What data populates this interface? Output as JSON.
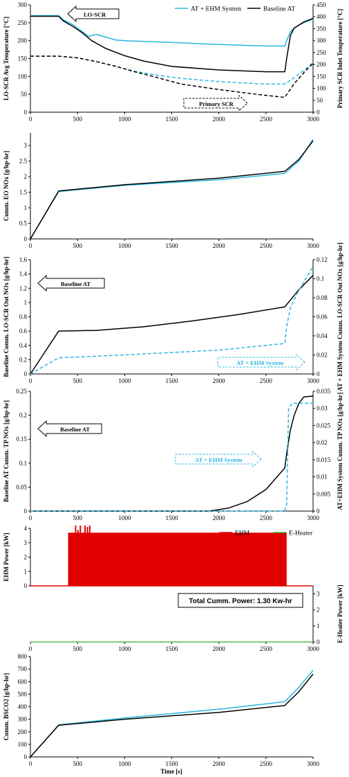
{
  "colors": {
    "baseline": "#000000",
    "ehm_system": "#29B6E0",
    "ehm_power": "#E00000",
    "e_heater": "#33AA33"
  },
  "x_axis": {
    "label": "Time [s]",
    "ticks": [
      0,
      500,
      1000,
      1500,
      2000,
      2500,
      3000
    ],
    "range": [
      0,
      3000
    ]
  },
  "chart_data": [
    {
      "type": "line",
      "ylabel_left": "LO-SCR Avg Temperature [°C]",
      "ylabel_right": "Primary SCR Inlet Temperature [°C]",
      "yticks_left": [
        0,
        50,
        100,
        150,
        200,
        250,
        300
      ],
      "yticks_right": [
        0,
        50,
        100,
        150,
        200,
        250,
        300,
        350,
        400,
        450
      ],
      "ylim_left": [
        0,
        300
      ],
      "ylim_right": [
        0,
        450
      ],
      "legend": [
        "AT + EHM System",
        "Baseline AT"
      ],
      "annotations": [
        "LO-SCR",
        "Primary SCR"
      ],
      "series": [
        {
          "name": "AT + EHM System",
          "axis": "left",
          "style": "solid",
          "color": "ehm_system",
          "x": [
            0,
            300,
            350,
            450,
            550,
            620,
            700,
            800,
            900,
            1000,
            1500,
            2000,
            2500,
            2700,
            2720,
            2760,
            2800,
            2900,
            3000
          ],
          "y": [
            270,
            270,
            258,
            245,
            225,
            212,
            217,
            210,
            202,
            200,
            195,
            189,
            185,
            185,
            200,
            225,
            236,
            250,
            260
          ]
        },
        {
          "name": "Baseline AT",
          "axis": "left",
          "style": "solid",
          "color": "baseline",
          "x": [
            0,
            300,
            350,
            450,
            550,
            650,
            800,
            1000,
            1200,
            1500,
            2000,
            2500,
            2700,
            2720,
            2760,
            2800,
            2900,
            3000
          ],
          "y": [
            268,
            268,
            255,
            240,
            222,
            200,
            178,
            158,
            143,
            128,
            118,
            113,
            113,
            150,
            215,
            235,
            252,
            262
          ]
        },
        {
          "name": "AT + EHM System",
          "axis": "right",
          "style": "dashed",
          "color": "ehm_system",
          "x": [
            0,
            300,
            500,
            700,
            900,
            1100,
            1300,
            1600,
            2000,
            2500,
            2700,
            2800,
            2900,
            3000
          ],
          "y": [
            235,
            235,
            228,
            212,
            193,
            172,
            158,
            142,
            128,
            118,
            118,
            145,
            175,
            208
          ]
        },
        {
          "name": "Baseline AT",
          "axis": "right",
          "style": "dashed",
          "color": "baseline",
          "x": [
            0,
            300,
            500,
            700,
            900,
            1100,
            1300,
            1600,
            2000,
            2400,
            2700,
            2800,
            2900,
            3000
          ],
          "y": [
            235,
            235,
            228,
            212,
            193,
            170,
            150,
            118,
            95,
            75,
            62,
            120,
            165,
            205
          ]
        }
      ]
    },
    {
      "type": "line",
      "ylabel_left": "Cumm. EO NOx [g/hp-hr]",
      "yticks_left": [
        0,
        0.5,
        1,
        1.5,
        2,
        2.5,
        3
      ],
      "ylim_left": [
        0,
        3.4
      ],
      "series": [
        {
          "name": "AT + EHM System",
          "axis": "left",
          "style": "solid",
          "color": "ehm_system",
          "x": [
            0,
            300,
            1000,
            2000,
            2700,
            2850,
            3000
          ],
          "y": [
            0,
            1.52,
            1.72,
            1.9,
            2.1,
            2.5,
            3.2
          ]
        },
        {
          "name": "Baseline AT",
          "axis": "left",
          "style": "solid",
          "color": "baseline",
          "x": [
            0,
            300,
            1000,
            2000,
            2700,
            2850,
            3000
          ],
          "y": [
            0,
            1.54,
            1.74,
            1.95,
            2.17,
            2.55,
            3.15
          ]
        }
      ]
    },
    {
      "type": "line",
      "ylabel_left": "Baseline Cumm. LO-SCR Out NOx [g/hp-hr]",
      "ylabel_right": "AT + EHM System Cumm. LO-SCR Out NOx [g/hp-hr]",
      "yticks_left": [
        0,
        0.2,
        0.4,
        0.6,
        0.8,
        1,
        1.2,
        1.4,
        1.6
      ],
      "yticks_right": [
        0,
        0.02,
        0.04,
        0.06,
        0.08,
        0.1,
        0.12
      ],
      "ylim_left": [
        0,
        1.6
      ],
      "ylim_right": [
        0,
        0.12
      ],
      "annotations": [
        "Baseline AT",
        "AT + EHM System"
      ],
      "series": [
        {
          "name": "Baseline AT",
          "axis": "left",
          "style": "solid",
          "color": "baseline",
          "x": [
            0,
            300,
            700,
            1200,
            1700,
            2200,
            2700,
            2850,
            3000
          ],
          "y": [
            0,
            0.6,
            0.61,
            0.66,
            0.74,
            0.83,
            0.94,
            1.18,
            1.38
          ]
        },
        {
          "name": "AT + EHM System",
          "axis": "right",
          "style": "dashed",
          "color": "ehm_system",
          "x": [
            0,
            300,
            1000,
            2000,
            2700,
            2720,
            2760,
            2850,
            3000
          ],
          "y": [
            0,
            0.017,
            0.02,
            0.025,
            0.032,
            0.05,
            0.07,
            0.088,
            0.113
          ]
        }
      ]
    },
    {
      "type": "line",
      "ylabel_left": "Baseline AT Cumm. TP NOx [g/hp-hr]",
      "ylabel_right": "AT+EHM System Cumm. TP NOx [g/hp-hr]",
      "yticks_left": [
        0,
        0.05,
        0.1,
        0.15,
        0.2,
        0.25
      ],
      "yticks_right": [
        0,
        0.005,
        0.01,
        0.015,
        0.02,
        0.025,
        0.03,
        0.035
      ],
      "ylim_left": [
        0,
        0.25
      ],
      "ylim_right": [
        0,
        0.035
      ],
      "annotations": [
        "Baseline AT",
        "AT + EHM System"
      ],
      "series": [
        {
          "name": "Baseline AT",
          "axis": "left",
          "style": "solid",
          "color": "baseline",
          "x": [
            0,
            1900,
            2100,
            2300,
            2500,
            2700,
            2720,
            2760,
            2800,
            2850,
            2900,
            3000
          ],
          "y": [
            0,
            0,
            0.006,
            0.02,
            0.045,
            0.09,
            0.12,
            0.17,
            0.2,
            0.225,
            0.238,
            0.24
          ]
        },
        {
          "name": "AT + EHM System",
          "axis": "right",
          "style": "dashed",
          "color": "ehm_system",
          "x": [
            0,
            2700,
            2720,
            2740,
            2780,
            2850,
            3000
          ],
          "y": [
            0,
            0,
            0.002,
            0.03,
            0.0315,
            0.0315,
            0.0315
          ]
        }
      ]
    },
    {
      "type": "line",
      "ylabel_left": "EHM Power [kW]",
      "ylabel_right": "E-Heater Power [kW]",
      "yticks_left": [
        0,
        1,
        2,
        3,
        4
      ],
      "yticks_right": [
        0,
        1,
        2,
        3
      ],
      "ylim_left": [
        0,
        4
      ],
      "ylim_right": [
        0,
        3.5
      ],
      "legend": [
        "EHM",
        "E-Heater"
      ],
      "annotations": [
        "Total Cumm. Power: 1.30 Kw-hr"
      ],
      "ehm_band": {
        "start": 400,
        "end": 2720,
        "level": 3.7,
        "spikes": [
          [
            410,
            2.5
          ],
          [
            430,
            3.6
          ],
          [
            455,
            3.4
          ],
          [
            480,
            4.2
          ],
          [
            505,
            3.9
          ],
          [
            530,
            4.2
          ],
          [
            555,
            3.6
          ],
          [
            580,
            4.2
          ],
          [
            605,
            4.1
          ],
          [
            630,
            4.2
          ]
        ]
      },
      "series": [
        {
          "name": "E-Heater",
          "axis": "right",
          "style": "solid",
          "color": "e_heater",
          "x": [
            0,
            3000
          ],
          "y": [
            0,
            0
          ]
        }
      ]
    },
    {
      "type": "line",
      "ylabel_left": "Cumm. BSCO2 [g/hp-hr]",
      "yticks_left": [
        0,
        100,
        200,
        300,
        400,
        500,
        600,
        700,
        800
      ],
      "ylim_left": [
        0,
        800
      ],
      "series": [
        {
          "name": "AT + EHM System",
          "axis": "left",
          "style": "solid",
          "color": "ehm_system",
          "x": [
            0,
            300,
            1000,
            2000,
            2700,
            2850,
            3000
          ],
          "y": [
            0,
            255,
            310,
            380,
            440,
            555,
            690
          ]
        },
        {
          "name": "Baseline AT",
          "axis": "left",
          "style": "solid",
          "color": "baseline",
          "x": [
            0,
            300,
            1000,
            2000,
            2700,
            2850,
            3000
          ],
          "y": [
            0,
            252,
            300,
            355,
            410,
            520,
            660
          ]
        }
      ]
    }
  ]
}
